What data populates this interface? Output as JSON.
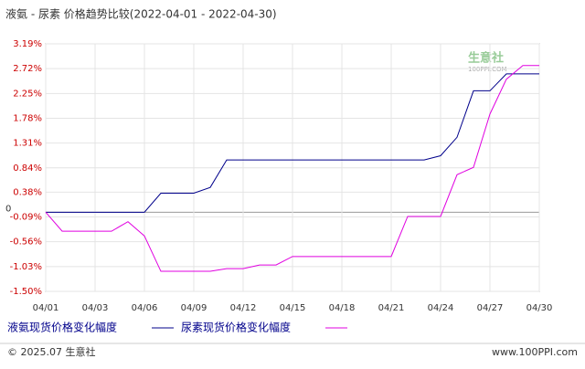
{
  "chart_data": {
    "type": "line",
    "title": "液氨 - 尿素 价格趋势比较(2022-04-01 - 2022-04-30)",
    "categories": [
      "04/01",
      null,
      null,
      "04/03",
      null,
      null,
      "04/06",
      null,
      null,
      "04/09",
      null,
      null,
      "04/12",
      null,
      null,
      "04/15",
      null,
      null,
      "04/18",
      null,
      null,
      "04/21",
      null,
      null,
      "04/24",
      null,
      null,
      "04/27",
      null,
      null,
      "04/30"
    ],
    "series": [
      {
        "name": "液氨现货价格变化幅度",
        "color": "#00008b",
        "values": [
          0,
          0,
          0,
          0,
          0,
          0,
          0,
          0.36,
          0.36,
          0.36,
          0.47,
          0.99,
          0.99,
          0.99,
          0.99,
          0.99,
          0.99,
          0.99,
          0.99,
          0.99,
          0.99,
          0.99,
          0.99,
          0.99,
          1.07,
          1.42,
          2.3,
          2.3,
          2.62,
          2.62,
          2.62
        ]
      },
      {
        "name": "尿素现货价格变化幅度",
        "color": "#e000e0",
        "values": [
          0,
          -0.36,
          -0.36,
          -0.36,
          -0.36,
          -0.18,
          -0.45,
          -1.12,
          -1.12,
          -1.12,
          -1.12,
          -1.07,
          -1.07,
          -1.0,
          -1.0,
          -0.84,
          -0.84,
          -0.84,
          -0.84,
          -0.84,
          -0.84,
          -0.84,
          -0.08,
          -0.08,
          -0.08,
          0.71,
          0.85,
          1.86,
          2.52,
          2.78,
          2.78
        ]
      }
    ],
    "ylim": [
      -1.5,
      3.19
    ],
    "yticks": [
      {
        "value": 3.19,
        "label": "3.19%"
      },
      {
        "value": 2.72,
        "label": "2.72%"
      },
      {
        "value": 2.25,
        "label": "2.25%"
      },
      {
        "value": 1.78,
        "label": "1.78%"
      },
      {
        "value": 1.31,
        "label": "1.31%"
      },
      {
        "value": 0.84,
        "label": "0.84%"
      },
      {
        "value": 0.38,
        "label": "0.38%"
      },
      0,
      {
        "value": -0.09,
        "label": "-0.09%"
      },
      {
        "value": -0.56,
        "label": "-0.56%"
      },
      {
        "value": -1.03,
        "label": "-1.03%"
      },
      {
        "value": -1.5,
        "label": "-1.50%"
      }
    ],
    "grid": true,
    "watermark": [
      "生意社",
      "100PPI.COM"
    ],
    "footer": {
      "left": "© 2025.07 生意社",
      "right": "www.100PPI.com"
    }
  }
}
